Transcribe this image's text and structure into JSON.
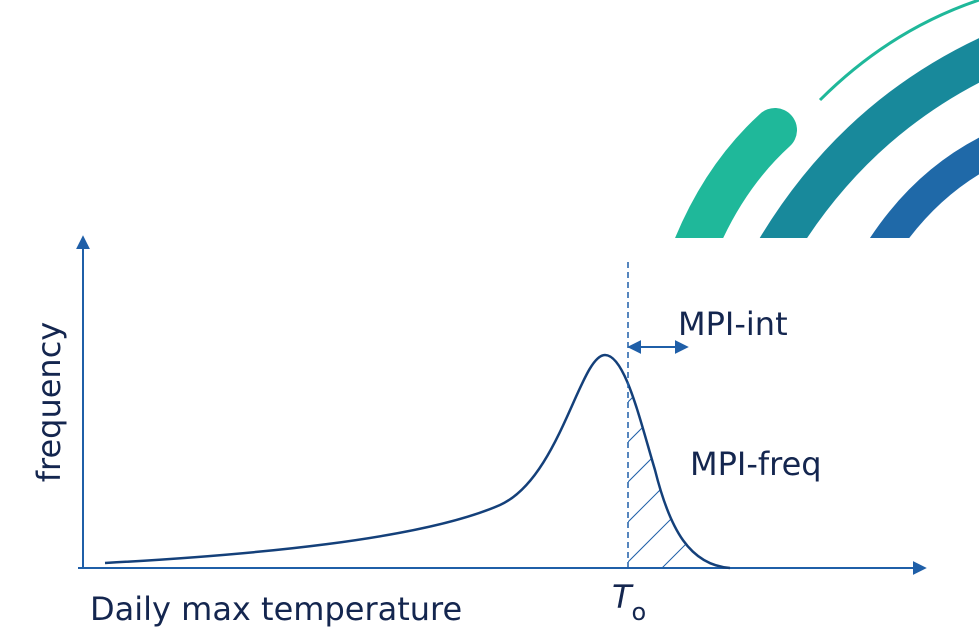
{
  "axes": {
    "y_label": "frequency",
    "x_label": "Daily max temperature"
  },
  "threshold": {
    "symbol": "T",
    "subscript": "o"
  },
  "annotations": {
    "interval": "MPI-int",
    "frequency": "MPI-freq"
  }
}
